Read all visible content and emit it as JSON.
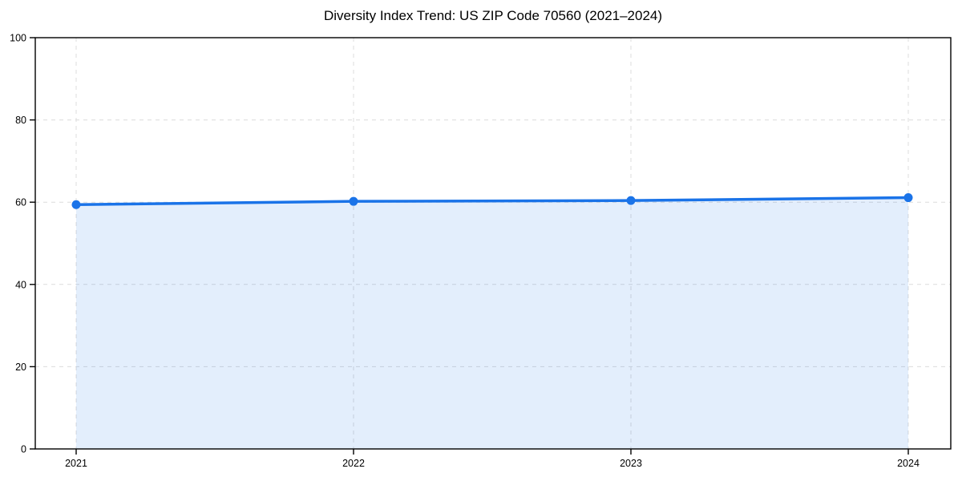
{
  "figure": {
    "title": "Diversity Index Trend: US ZIP Code 70560 (2021–2024)"
  },
  "chart_data": {
    "type": "line",
    "subtype": "area-filled-line-with-markers",
    "title": "Diversity Index Trend: US ZIP Code 70560 (2021–2024)",
    "xlabel": "",
    "ylabel": "",
    "categories": [
      "2021",
      "2022",
      "2023",
      "2024"
    ],
    "series": [
      {
        "name": "Diversity Index",
        "values": [
          59.4,
          60.2,
          60.4,
          61.1
        ]
      }
    ],
    "ylim": [
      0,
      100
    ],
    "yticks": [
      0,
      20,
      40,
      60,
      80,
      100
    ],
    "grid": "dashed-both-axes",
    "legend": "none",
    "colors": {
      "line": "#1a73e8",
      "marker": "#1a73e8",
      "fill": "rgba(26,115,232,0.12)",
      "grid": "#dcdcdc",
      "axis": "#000000",
      "background": "#ffffff",
      "text": "#000000"
    }
  }
}
